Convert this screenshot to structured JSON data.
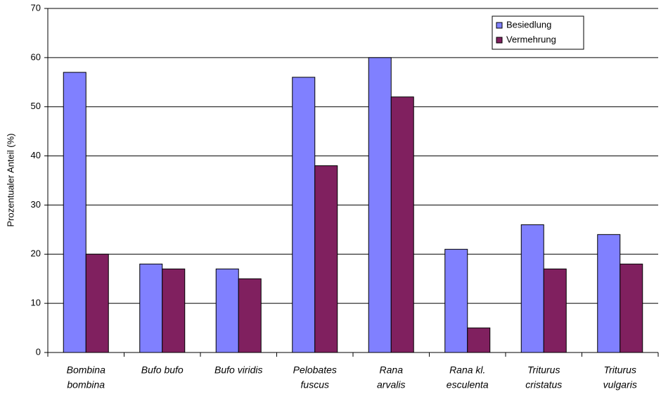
{
  "chart_data": {
    "type": "bar",
    "y_label": "Prozentualer Anteil (%)",
    "categories": [
      [
        "Bombina",
        "bombina"
      ],
      [
        "Bufo bufo"
      ],
      [
        "Bufo viridis"
      ],
      [
        "Pelobates",
        "fuscus"
      ],
      [
        "Rana",
        "arvalis"
      ],
      [
        "Rana kl.",
        "esculenta"
      ],
      [
        "Triturus",
        "cristatus"
      ],
      [
        "Triturus",
        "vulgaris"
      ]
    ],
    "series": [
      {
        "name": "Besiedlung",
        "color": "#8080ff",
        "values": [
          57,
          18,
          17,
          56,
          60,
          21,
          26,
          24
        ]
      },
      {
        "name": "Vermehrung",
        "color": "#80205f",
        "values": [
          20,
          17,
          15,
          38,
          52,
          5,
          17,
          18
        ]
      }
    ],
    "ylim": [
      0,
      70
    ],
    "yticks": [
      0,
      10,
      20,
      30,
      40,
      50,
      60,
      70
    ],
    "grid": true,
    "legend": "top-right"
  }
}
